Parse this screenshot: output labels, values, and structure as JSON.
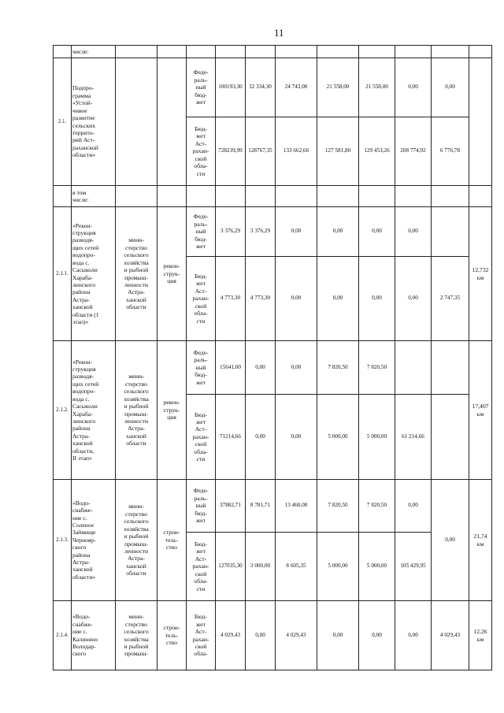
{
  "page_number": "11",
  "top_row": {
    "name": "числе:"
  },
  "s21": {
    "num": "2.1.",
    "name": "Подпро-\nграмма\n«Устой-\nчивое\nразвитие\nсельских\nтеррито-\nрий Аст-\nраханской\nобласти»",
    "fed": {
      "source": "Феде-\nраль-\nный\nбюд-\nжет",
      "values": [
        "100193,30",
        "32 334,30",
        "24 743,00",
        "21 558,00",
        "21 558,00",
        "0,00",
        "0,00"
      ]
    },
    "reg": {
      "source": "Бюд-\nжет\nАст-\nрахан-\nской\nобла-\nсти",
      "values": [
        "728239,99",
        "128767,35",
        "133 662,66",
        "127 581,80",
        "129 453,26",
        "208 774,92",
        "6 776,78"
      ]
    }
  },
  "incl": {
    "name": "в том\nчисле:"
  },
  "s211": {
    "num": "2.1.1.",
    "name": "«Рекон-\nструкция\nразводя-\nщих сетей\nводопро-\nвода с.\nСасыколи\nХараба-\nлинского\nрайона\nАстра-\nханской\nобласти (1\nэтап)»",
    "responsible": "мини-\nстерство\nсельского\nхозяйства\nи рыбной\nпромыш-\nленности\nАстра-\nханской\nобласти",
    "type": "рекон-\nструк-\nция",
    "km": "12,732\nкм",
    "fed": {
      "source": "Феде-\nраль-\nный\nбюд-\nжет",
      "values": [
        "3 376,29",
        "3 376,29",
        "0,00",
        "0,00",
        "0,00",
        "0,00",
        ""
      ]
    },
    "reg": {
      "source": "Бюд-\nжет\nАст-\nрахан-\nской\nобла-\nсти",
      "values": [
        "4 773,30",
        "4 773,30",
        "0,00",
        "0,00",
        "0,00",
        "0,00",
        "2 747,35"
      ]
    }
  },
  "s212": {
    "num": "2.1.2.",
    "name": "«Рекон-\nструкция\nразводя-\nщих сетей\nводопро-\nвода с.\nСасыколи\nХараба-\nлинского\nрайона\nАстра-\nханской\nобласти,\nII этап»",
    "responsible": "мини-\nстерство\nсельского\nхозяйства\nи рыбной\nпромыш-\nленности\nАстра-\nханской\nобласти",
    "type": "рекон-\nструк-\nция",
    "km": "17,407\nкм",
    "fed": {
      "source": "Феде-\nраль-\nный\nбюд-\nжет",
      "values": [
        "15641,00",
        "0,00",
        "0,00",
        "7 820,50",
        "7 820,50",
        "",
        ""
      ]
    },
    "reg": {
      "source": "Бюд-\nжет\nАст-\nрахан-\nской\nобла-\nсти",
      "values": [
        "71214,66",
        "0,00",
        "0,00",
        "5 000,00",
        "5 000,00",
        "61 214,66",
        ""
      ]
    }
  },
  "s213": {
    "num": "2.1.3.",
    "name": "«Водо-\nснабже-\nние с.\nСоленое\nЗаймище\nЧернояр-\nского\nрайона\nАстра-\nханской\nобласти»",
    "responsible": "мини-\nстерство\nсельского\nхозяйства\nи рыбной\nпромыш-\nленности\nАстра-\nханской\nобласти",
    "type": "строи-\nтель-\nство",
    "km": "21,74\nкм",
    "last_merged": "0,00",
    "fed": {
      "source": "Феде-\nраль-\nный\nбюд-\nжет",
      "values": [
        "37882,71",
        "8 781,71",
        "13 460,00",
        "7 820,50",
        "7 820,50",
        "0,00"
      ]
    },
    "reg": {
      "source": "Бюд-\nжет\nАст-\nрахан-\nской\nобла-\nсти",
      "values": [
        "127035,30",
        "3 000,00",
        "8 605,35",
        "5 000,00",
        "5 000,00",
        "105 429,95"
      ]
    }
  },
  "s214": {
    "num": "2.1.4.",
    "name": "«Водо-\nснабже-\nние с.\nКалинино\nВолодар-\nского",
    "responsible": "мини-\nстерство\nсельского\nхозяйства\nи рыбной\nпромыш-",
    "type": "строи-\nтель-\nство",
    "km": "12,26\nкм",
    "reg": {
      "source": "Бюд-\nжет\nАст-\nрахан-\nской\nобла-",
      "values": [
        "4 029,43",
        "0,00",
        "4 029,43",
        "0,00",
        "0,00",
        "0,00",
        "4 029,43"
      ]
    }
  }
}
